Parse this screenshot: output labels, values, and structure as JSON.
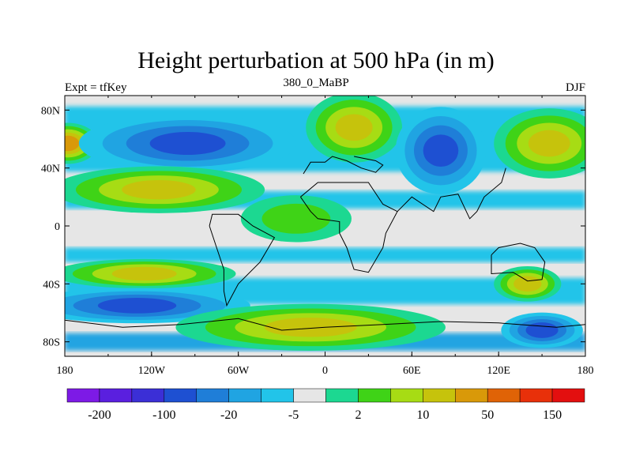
{
  "header": {
    "title": "Height perturbation at 500 hPa (in m)",
    "left_label": "Expt = tfKey",
    "center_label": "380_0_MaBP",
    "right_label": "DJF"
  },
  "palette": {
    "white": "#e8e8e8",
    "colors": [
      "#7d1ae6",
      "#5a1fdf",
      "#3b2fd6",
      "#1e50d2",
      "#1f7ed8",
      "#20a4e2",
      "#22c4e9",
      "#e6e6e6",
      "#1cd891",
      "#3fd317",
      "#a7dc14",
      "#c6c30c",
      "#d99909",
      "#e06306",
      "#e8300a",
      "#e30f0f"
    ]
  },
  "chart_data": {
    "type": "heatmap",
    "xlabel": "",
    "ylabel": "",
    "xlim": [
      -180,
      180
    ],
    "ylim": [
      -90,
      90
    ],
    "x_ticks": [
      "180",
      "120W",
      "60W",
      "0",
      "60E",
      "120E",
      "180"
    ],
    "y_ticks": [
      "80N",
      "40N",
      "0",
      "40S",
      "80S"
    ],
    "colorbar_labels": [
      "-200",
      "-100",
      "-20",
      "-5",
      "2",
      "10",
      "50",
      "150"
    ],
    "regions": [
      {
        "label": "NH-jet-high-left",
        "lon": -178,
        "lat": 57,
        "rlon": 18,
        "rlat": 12,
        "level": 12
      },
      {
        "label": "NH-low-west",
        "lon": -95,
        "lat": 57,
        "rlon": 72,
        "rlat": 18,
        "level": 3
      },
      {
        "label": "NH-high-west",
        "lon": -115,
        "lat": 25,
        "rlon": 70,
        "rlat": 14,
        "level": 11
      },
      {
        "label": "NH-high-atlantic",
        "lon": 20,
        "lat": 68,
        "rlon": 30,
        "rlat": 22,
        "level": 11
      },
      {
        "label": "NH-low-asia",
        "lon": 80,
        "lat": 52,
        "rlon": 28,
        "rlat": 28,
        "level": 3
      },
      {
        "label": "NH-high-pacific",
        "lon": 155,
        "lat": 57,
        "rlon": 35,
        "rlat": 22,
        "level": 11
      },
      {
        "label": "Tropics-green",
        "lon": -20,
        "lat": 5,
        "rlon": 35,
        "rlat": 14,
        "level": 9
      },
      {
        "label": "SH-high-band",
        "lon": -125,
        "lat": -33,
        "rlon": 60,
        "rlat": 8,
        "level": 11
      },
      {
        "label": "SH-low-band",
        "lon": -130,
        "lat": -55,
        "rlon": 75,
        "rlat": 10,
        "level": 3
      },
      {
        "label": "SH-high-polar",
        "lon": -10,
        "lat": -70,
        "rlon": 90,
        "rlat": 14,
        "level": 11
      },
      {
        "label": "SH-high-pacific",
        "lon": 140,
        "lat": -40,
        "rlon": 20,
        "rlat": 10,
        "level": 11
      },
      {
        "label": "SH-low-pacific",
        "lon": 150,
        "lat": -72,
        "rlon": 25,
        "rlat": 10,
        "level": 3
      }
    ]
  }
}
